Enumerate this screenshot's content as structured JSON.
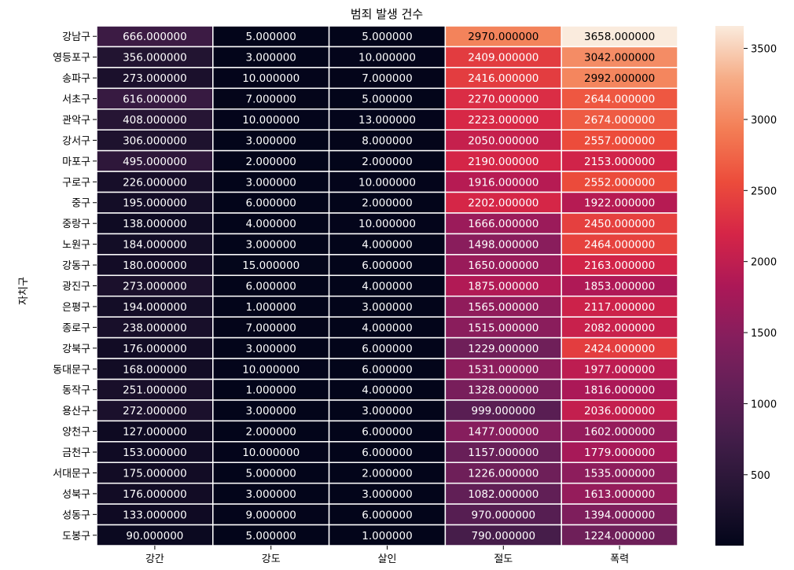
{
  "chart_data": {
    "type": "heatmap",
    "title": "범죄 발생 건수",
    "xlabel": "",
    "ylabel": "자치구",
    "columns": [
      "강간",
      "강도",
      "살인",
      "절도",
      "폭력"
    ],
    "rows": [
      "강남구",
      "영등포구",
      "송파구",
      "서초구",
      "관악구",
      "강서구",
      "마포구",
      "구로구",
      "중구",
      "중랑구",
      "노원구",
      "강동구",
      "광진구",
      "은평구",
      "종로구",
      "강북구",
      "동대문구",
      "동작구",
      "용산구",
      "양천구",
      "금천구",
      "서대문구",
      "성북구",
      "성동구",
      "도봉구"
    ],
    "values": [
      [
        666,
        5,
        5,
        2970,
        3658
      ],
      [
        356,
        3,
        10,
        2409,
        3042
      ],
      [
        273,
        10,
        7,
        2416,
        2992
      ],
      [
        616,
        7,
        5,
        2270,
        2644
      ],
      [
        408,
        10,
        13,
        2223,
        2674
      ],
      [
        306,
        3,
        8,
        2050,
        2557
      ],
      [
        495,
        2,
        2,
        2190,
        2153
      ],
      [
        226,
        3,
        10,
        1916,
        2552
      ],
      [
        195,
        6,
        2,
        2202,
        1922
      ],
      [
        138,
        4,
        10,
        1666,
        2450
      ],
      [
        184,
        3,
        4,
        1498,
        2464
      ],
      [
        180,
        15,
        6,
        1650,
        2163
      ],
      [
        273,
        6,
        4,
        1875,
        1853
      ],
      [
        194,
        1,
        3,
        1565,
        2117
      ],
      [
        238,
        7,
        4,
        1515,
        2082
      ],
      [
        176,
        3,
        6,
        1229,
        2424
      ],
      [
        168,
        10,
        6,
        1531,
        1977
      ],
      [
        251,
        1,
        4,
        1328,
        1816
      ],
      [
        272,
        3,
        3,
        999,
        2036
      ],
      [
        127,
        2,
        6,
        1477,
        1602
      ],
      [
        153,
        10,
        6,
        1157,
        1779
      ],
      [
        175,
        5,
        2,
        1226,
        1535
      ],
      [
        176,
        3,
        3,
        1082,
        1613
      ],
      [
        133,
        9,
        6,
        970,
        1394
      ],
      [
        90,
        5,
        1,
        790,
        1224
      ]
    ],
    "value_format": "6 decimals",
    "colormap": "rocket",
    "vmin": 1,
    "vmax": 3658,
    "colorbar_ticks": [
      500,
      1000,
      1500,
      2000,
      2500,
      3000,
      3500
    ],
    "cell_separator_color": "#ffffff",
    "label_color_dark_cells": "#ffffff",
    "label_color_light_cells": "#000000"
  }
}
